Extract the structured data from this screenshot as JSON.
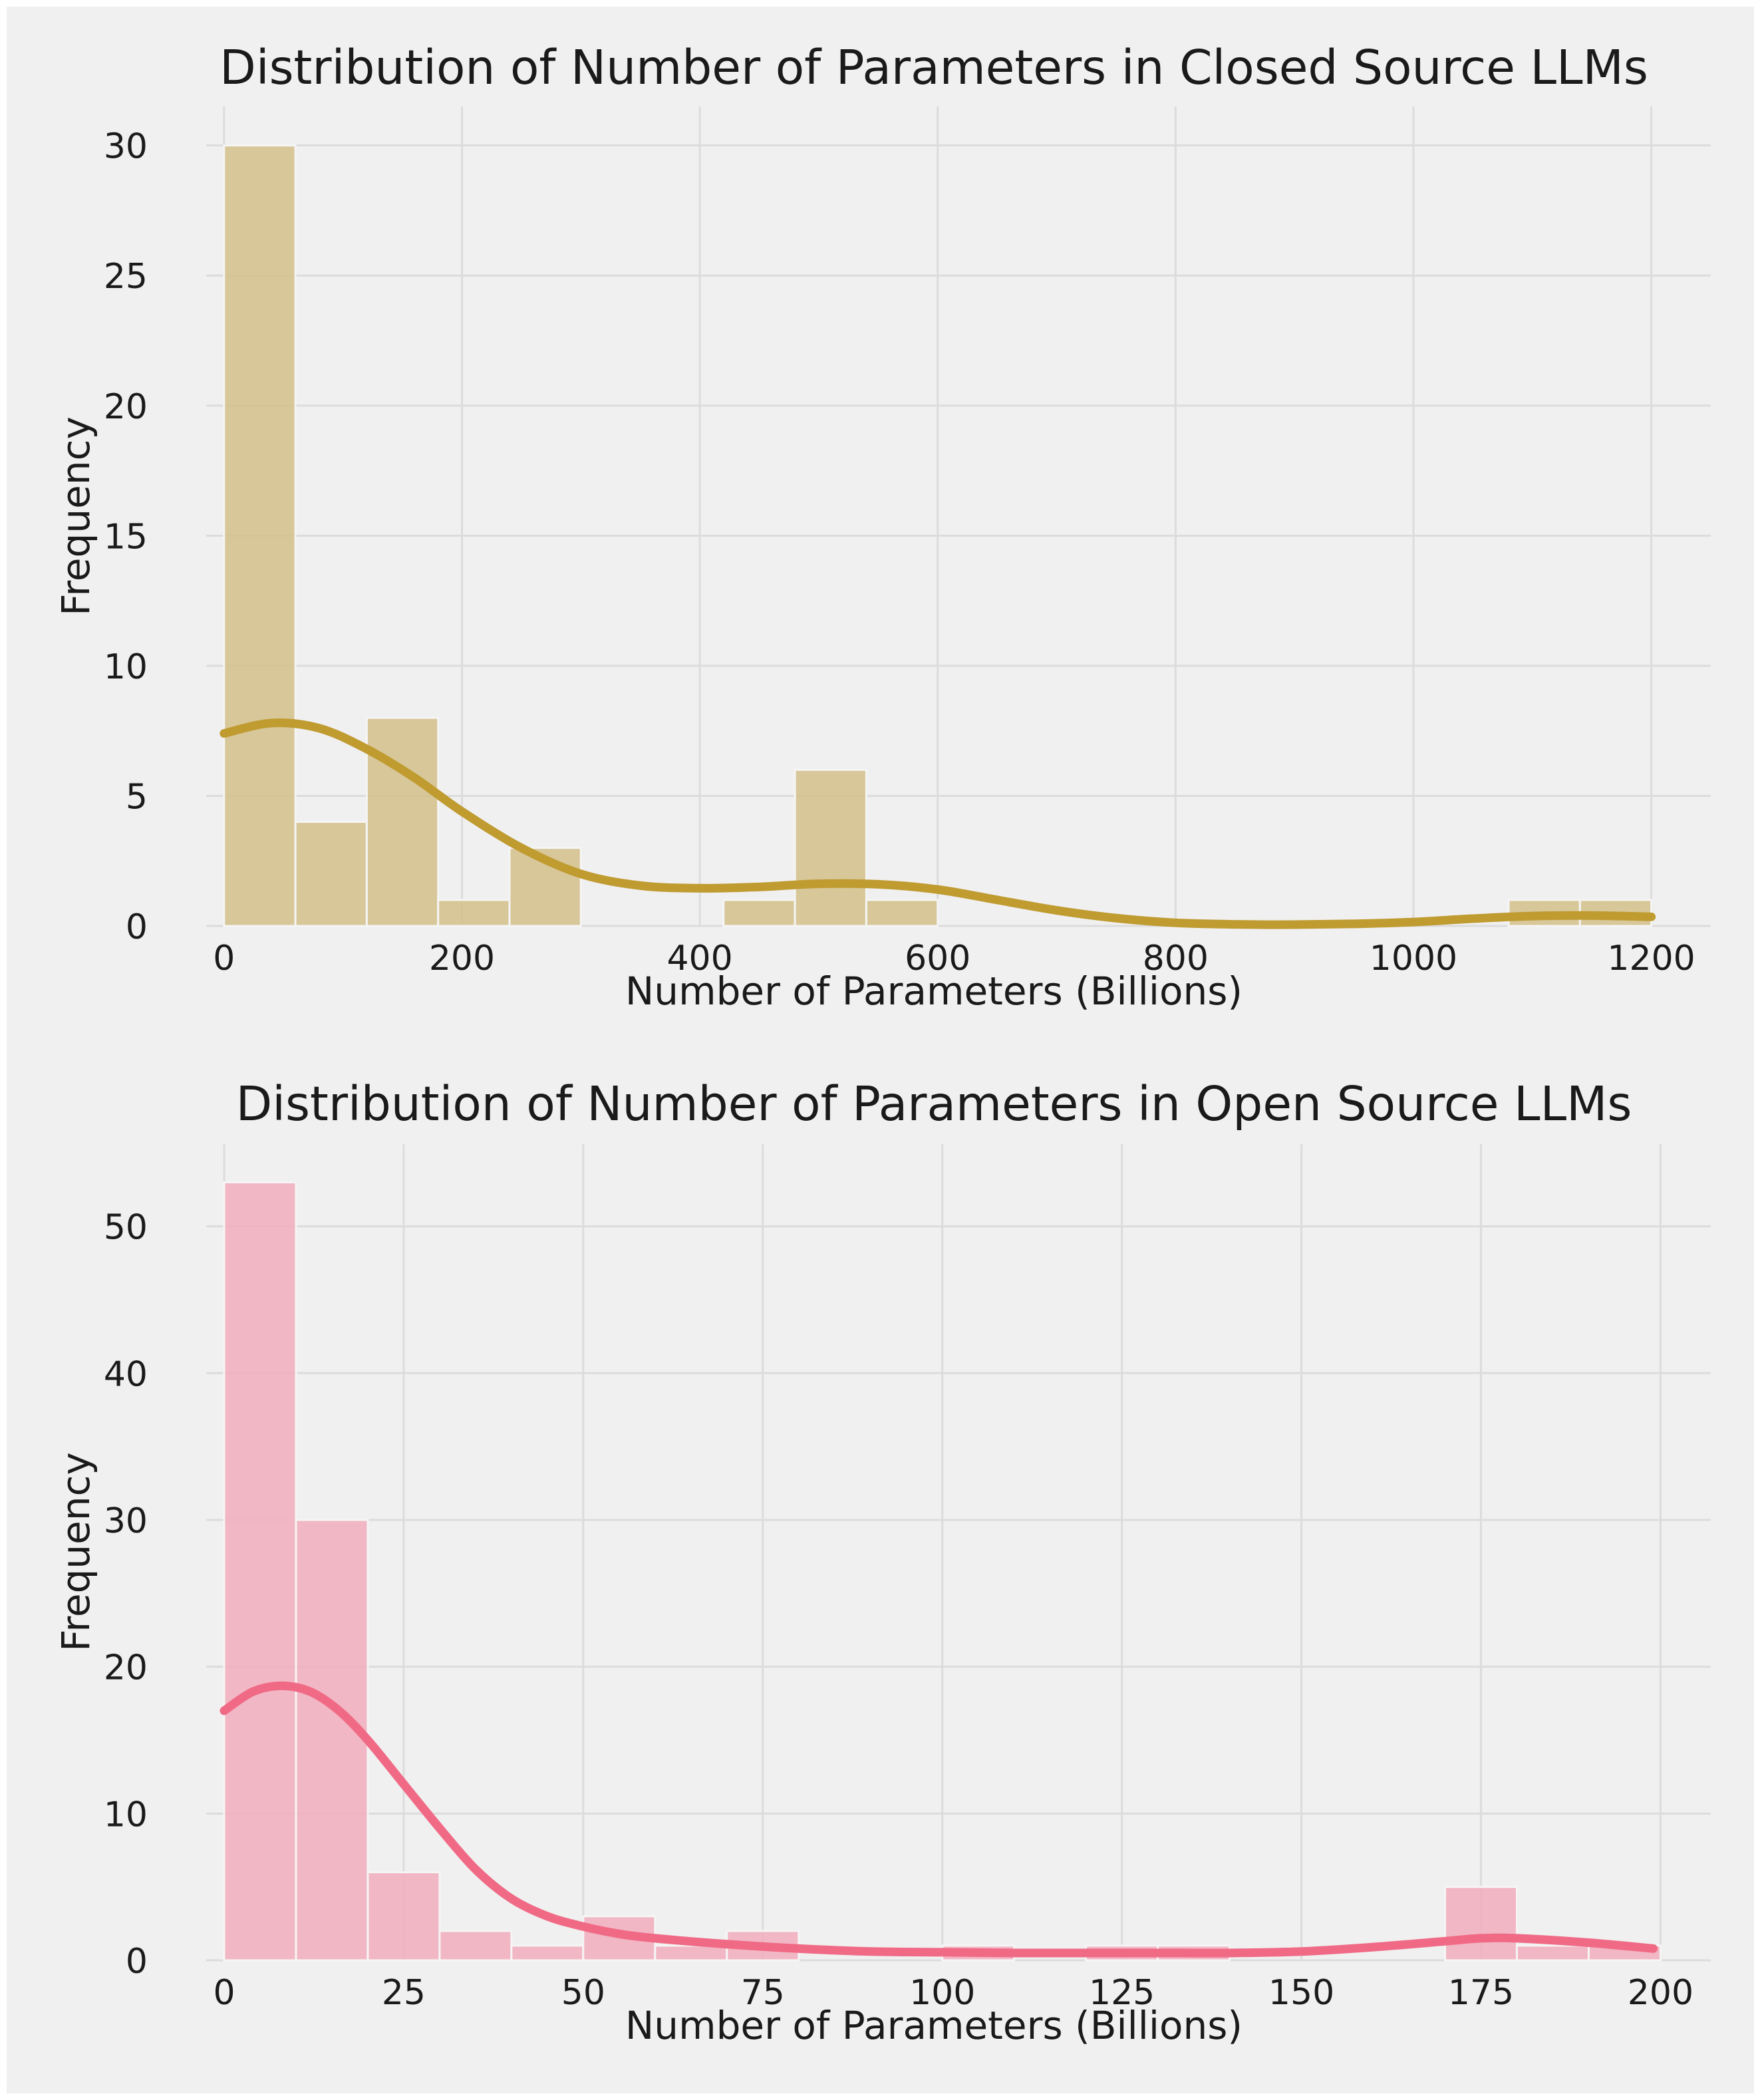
{
  "colors": {
    "figure_background": "#f0f0f0",
    "page_background": "#ffffff",
    "grid": "#dcdcdc",
    "text": "#1a1a1a",
    "closed_bar_fill": "#d4c08a",
    "closed_kde_line": "#bf9b30",
    "open_bar_fill": "#f2adbc",
    "open_kde_line": "#f06a86"
  },
  "chart_data": [
    {
      "type": "bar",
      "subtype": "histogram_with_kde",
      "title": "Distribution of Number of Parameters in Closed Source LLMs",
      "xlabel": "Number of Parameters (Billions)",
      "ylabel": "Frequency",
      "xlim": [
        -15,
        1250
      ],
      "ylim": [
        0,
        31.5
      ],
      "grid": true,
      "xticks": [
        0,
        200,
        400,
        600,
        800,
        1000,
        1200
      ],
      "xtick_labels": [
        "0",
        "200",
        "400",
        "600",
        "800",
        "1000",
        "1200"
      ],
      "yticks": [
        0,
        5,
        10,
        15,
        20,
        25,
        30
      ],
      "ytick_labels": [
        "0",
        "5",
        "10",
        "15",
        "20",
        "25",
        "30"
      ],
      "bins": [
        {
          "start": 0,
          "end": 60,
          "count": 30
        },
        {
          "start": 60,
          "end": 120,
          "count": 4
        },
        {
          "start": 120,
          "end": 180,
          "count": 8
        },
        {
          "start": 180,
          "end": 240,
          "count": 1
        },
        {
          "start": 240,
          "end": 300,
          "count": 3
        },
        {
          "start": 420,
          "end": 480,
          "count": 1
        },
        {
          "start": 480,
          "end": 540,
          "count": 6
        },
        {
          "start": 540,
          "end": 600,
          "count": 1
        },
        {
          "start": 1080,
          "end": 1140,
          "count": 1
        },
        {
          "start": 1140,
          "end": 1200,
          "count": 1
        }
      ],
      "kde": {
        "x": [
          0,
          40,
          80,
          120,
          160,
          200,
          250,
          300,
          350,
          400,
          450,
          500,
          550,
          600,
          650,
          700,
          750,
          800,
          850,
          900,
          950,
          1000,
          1050,
          1100,
          1150,
          1200
        ],
        "y": [
          7.4,
          7.8,
          7.6,
          6.8,
          5.7,
          4.4,
          3.0,
          2.0,
          1.55,
          1.45,
          1.5,
          1.62,
          1.6,
          1.4,
          1.0,
          0.6,
          0.3,
          0.12,
          0.06,
          0.05,
          0.08,
          0.15,
          0.28,
          0.38,
          0.4,
          0.35
        ]
      }
    },
    {
      "type": "bar",
      "subtype": "histogram_with_kde",
      "title": "Distribution of Number of Parameters in Open Source LLMs",
      "xlabel": "Number of Parameters (Billions)",
      "ylabel": "Frequency",
      "xlim": [
        -2.5,
        207
      ],
      "ylim": [
        0,
        55.6
      ],
      "grid": true,
      "xticks": [
        0,
        25,
        50,
        75,
        100,
        125,
        150,
        175,
        200
      ],
      "xtick_labels": [
        "0",
        "25",
        "50",
        "75",
        "100",
        "125",
        "150",
        "175",
        "200"
      ],
      "yticks": [
        0,
        10,
        20,
        30,
        40,
        50
      ],
      "ytick_labels": [
        "0",
        "10",
        "20",
        "30",
        "40",
        "50"
      ],
      "bins": [
        {
          "start": 0,
          "end": 10,
          "count": 53
        },
        {
          "start": 10,
          "end": 20,
          "count": 30
        },
        {
          "start": 20,
          "end": 30,
          "count": 6
        },
        {
          "start": 30,
          "end": 40,
          "count": 2
        },
        {
          "start": 40,
          "end": 50,
          "count": 1
        },
        {
          "start": 50,
          "end": 60,
          "count": 3
        },
        {
          "start": 60,
          "end": 70,
          "count": 1
        },
        {
          "start": 70,
          "end": 80,
          "count": 2
        },
        {
          "start": 100,
          "end": 110,
          "count": 1
        },
        {
          "start": 120,
          "end": 130,
          "count": 1
        },
        {
          "start": 130,
          "end": 140,
          "count": 1
        },
        {
          "start": 170,
          "end": 180,
          "count": 5
        },
        {
          "start": 180,
          "end": 190,
          "count": 1
        },
        {
          "start": 190,
          "end": 200,
          "count": 1
        }
      ],
      "kde": {
        "x": [
          0,
          4,
          8,
          12,
          16,
          20,
          25,
          30,
          35,
          40,
          45,
          50,
          55,
          60,
          70,
          80,
          90,
          100,
          110,
          120,
          130,
          140,
          150,
          160,
          170,
          175,
          180,
          190,
          199
        ],
        "y": [
          17,
          18.3,
          18.7,
          18.3,
          17,
          15,
          12,
          9,
          6.2,
          4.2,
          3.0,
          2.3,
          1.8,
          1.5,
          1.1,
          0.8,
          0.6,
          0.55,
          0.5,
          0.5,
          0.5,
          0.5,
          0.6,
          0.9,
          1.3,
          1.5,
          1.5,
          1.2,
          0.8
        ]
      }
    }
  ]
}
